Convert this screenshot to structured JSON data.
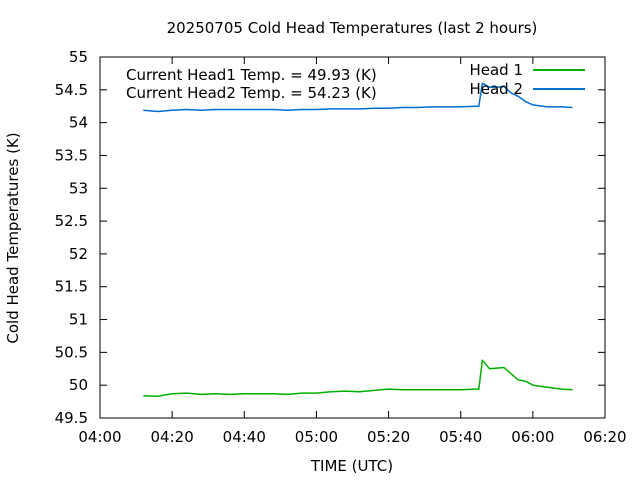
{
  "chart_data": {
    "type": "line",
    "title": "20250705 Cold Head Temperatures (last 2 hours)",
    "xlabel": "TIME (UTC)",
    "ylabel": "Cold Head Temperatures (K)",
    "xlim": [
      "04:00",
      "06:20"
    ],
    "ylim": [
      49.5,
      55
    ],
    "x_ticks": [
      "04:00",
      "04:20",
      "04:40",
      "05:00",
      "05:20",
      "05:40",
      "06:00",
      "06:20"
    ],
    "y_ticks": [
      "49.5",
      "50",
      "50.5",
      "51",
      "51.5",
      "52",
      "52.5",
      "53",
      "53.5",
      "54",
      "54.5",
      "55"
    ],
    "grid": false,
    "legend": "top-right",
    "annotations": [
      "Current Head1 Temp. = 49.93 (K)",
      "Current Head2 Temp. = 54.23 (K)"
    ],
    "series": [
      {
        "name": "Head 1",
        "color": "#00b000",
        "x": [
          "04:12",
          "04:16",
          "04:20",
          "04:24",
          "04:28",
          "04:32",
          "04:36",
          "04:40",
          "04:44",
          "04:48",
          "04:52",
          "04:56",
          "05:00",
          "05:04",
          "05:08",
          "05:12",
          "05:16",
          "05:20",
          "05:24",
          "05:28",
          "05:32",
          "05:36",
          "05:40",
          "05:44",
          "05:45",
          "05:46",
          "05:48",
          "05:50",
          "05:52",
          "05:54",
          "05:56",
          "05:58",
          "06:00",
          "06:04",
          "06:08",
          "06:11"
        ],
        "values": [
          49.84,
          49.83,
          49.87,
          49.88,
          49.86,
          49.87,
          49.86,
          49.87,
          49.87,
          49.87,
          49.86,
          49.88,
          49.88,
          49.9,
          49.91,
          49.9,
          49.92,
          49.94,
          49.93,
          49.93,
          49.93,
          49.93,
          49.93,
          49.94,
          49.94,
          50.38,
          50.25,
          50.26,
          50.27,
          50.17,
          50.08,
          50.06,
          50.0,
          49.97,
          49.94,
          49.93
        ]
      },
      {
        "name": "Head 2",
        "color": "#0070d0",
        "x": [
          "04:12",
          "04:16",
          "04:20",
          "04:24",
          "04:28",
          "04:32",
          "04:36",
          "04:40",
          "04:44",
          "04:48",
          "04:52",
          "04:56",
          "05:00",
          "05:04",
          "05:08",
          "05:12",
          "05:16",
          "05:20",
          "05:24",
          "05:28",
          "05:32",
          "05:36",
          "05:40",
          "05:44",
          "05:45",
          "05:46",
          "05:48",
          "05:50",
          "05:52",
          "05:54",
          "05:56",
          "05:58",
          "06:00",
          "06:04",
          "06:08",
          "06:11"
        ],
        "values": [
          54.19,
          54.17,
          54.19,
          54.2,
          54.19,
          54.2,
          54.2,
          54.2,
          54.2,
          54.2,
          54.19,
          54.2,
          54.2,
          54.21,
          54.21,
          54.21,
          54.22,
          54.22,
          54.23,
          54.23,
          54.24,
          54.24,
          54.24,
          54.25,
          54.25,
          54.6,
          54.54,
          54.54,
          54.55,
          54.45,
          54.4,
          54.32,
          54.27,
          54.24,
          54.24,
          54.23
        ]
      }
    ]
  }
}
